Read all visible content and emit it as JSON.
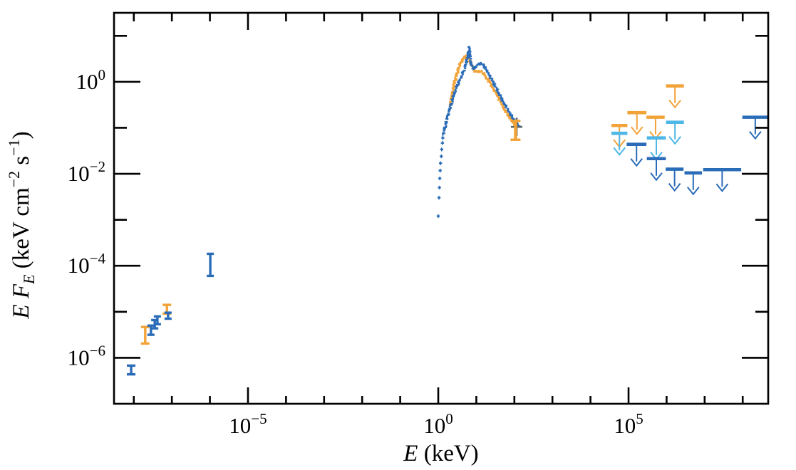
{
  "figure": {
    "background": "#ffffff",
    "axis_color": "#000000"
  },
  "chart_data": {
    "type": "scatter",
    "title": "",
    "x_scale": "log",
    "y_scale": "log",
    "xlabel_parts": [
      {
        "t": "E",
        "style": "italic"
      },
      {
        "t": " (keV)"
      }
    ],
    "ylabel_parts": [
      {
        "t": "E F",
        "style": "italic"
      },
      {
        "t": "E",
        "style": "italic",
        "script": "sub"
      },
      {
        "t": " (keV cm"
      },
      {
        "t": "−2",
        "script": "sup"
      },
      {
        "t": " s"
      },
      {
        "t": "−1",
        "script": "sup"
      },
      {
        "t": ")"
      }
    ],
    "xlim_log": [
      -8.52,
      8.67
    ],
    "ylim_log": [
      -7.0,
      1.5
    ],
    "x_ticks": {
      "major_exponents": [
        -5,
        0,
        5
      ],
      "minor_exponents": [
        -8,
        -7,
        -6,
        -4,
        -3,
        -2,
        -1,
        1,
        2,
        3,
        4,
        6,
        7,
        8
      ]
    },
    "y_ticks": {
      "major_exponents": [
        0,
        -2,
        -4,
        -6
      ],
      "minor_exponents": [
        1,
        -1,
        -3,
        -5
      ]
    },
    "tick_label_base": "10",
    "colors": {
      "blue": "#2a6cb8",
      "orange": "#f1a338",
      "lightblue": "#4db7e8",
      "gray": "#5b656d",
      "axis": "#000000"
    },
    "series": {
      "radio_errorbars_blue": [
        {
          "x": -8.07,
          "ylo": -6.36,
          "yhi": -6.17,
          "capw": 6
        },
        {
          "x": -7.55,
          "ylo": -5.5,
          "yhi": -5.3,
          "capw": 5
        },
        {
          "x": -7.45,
          "ylo": -5.36,
          "yhi": -5.18,
          "capw": 5
        },
        {
          "x": -7.38,
          "ylo": -5.27,
          "yhi": -5.1,
          "capw": 5
        },
        {
          "x": -7.1,
          "ylo": -5.15,
          "yhi": -5.02,
          "capw": 5
        },
        {
          "x": -5.99,
          "ylo": -4.22,
          "yhi": -3.74,
          "capw": 5
        }
      ],
      "radio_errorbars_orange": [
        {
          "x": -7.7,
          "ylo": -5.69,
          "yhi": -5.33,
          "capw": 6
        },
        {
          "x": -7.13,
          "ylo": -5.04,
          "yhi": -4.85,
          "capw": 6
        }
      ],
      "xray_blue_sparse_points": [
        [
          0.0,
          -2.92
        ],
        [
          0.02,
          -2.52
        ],
        [
          0.03,
          -2.3
        ],
        [
          0.04,
          -2.1
        ],
        [
          0.05,
          -1.93
        ],
        [
          0.06,
          -1.77
        ],
        [
          0.08,
          -1.62
        ],
        [
          0.09,
          -1.47
        ],
        [
          0.11,
          -1.33
        ],
        [
          0.12,
          -1.22
        ]
      ],
      "xray_blue_anchors": [
        [
          0.13,
          -1.13
        ],
        [
          0.17,
          -1.01
        ],
        [
          0.21,
          -0.88
        ],
        [
          0.24,
          -0.76
        ],
        [
          0.28,
          -0.65
        ],
        [
          0.32,
          -0.54
        ],
        [
          0.36,
          -0.43
        ],
        [
          0.39,
          -0.33
        ],
        [
          0.43,
          -0.23
        ],
        [
          0.47,
          -0.14
        ],
        [
          0.52,
          -0.03
        ],
        [
          0.58,
          0.08
        ],
        [
          0.64,
          0.19
        ],
        [
          0.69,
          0.29
        ],
        [
          0.73,
          0.39
        ],
        [
          0.77,
          0.51
        ],
        [
          0.79,
          0.64
        ],
        [
          0.81,
          0.76
        ],
        [
          0.82,
          0.64
        ],
        [
          0.84,
          0.54
        ],
        [
          0.86,
          0.42
        ],
        [
          0.88,
          0.34
        ],
        [
          0.92,
          0.28
        ],
        [
          0.96,
          0.29
        ],
        [
          0.99,
          0.33
        ],
        [
          1.05,
          0.37
        ],
        [
          1.1,
          0.4
        ],
        [
          1.16,
          0.39
        ],
        [
          1.22,
          0.33
        ],
        [
          1.27,
          0.25
        ],
        [
          1.33,
          0.17
        ],
        [
          1.4,
          0.06
        ],
        [
          1.48,
          -0.06
        ],
        [
          1.55,
          -0.19
        ],
        [
          1.63,
          -0.31
        ],
        [
          1.7,
          -0.43
        ],
        [
          1.78,
          -0.54
        ],
        [
          1.85,
          -0.65
        ],
        [
          1.93,
          -0.74
        ],
        [
          2.0,
          -0.84
        ],
        [
          2.08,
          -0.92
        ],
        [
          2.13,
          -0.98
        ]
      ],
      "xray_orange_anchors": [
        [
          0.32,
          -0.51
        ],
        [
          0.34,
          -0.4
        ],
        [
          0.36,
          -0.31
        ],
        [
          0.39,
          -0.16
        ],
        [
          0.43,
          -0.02
        ],
        [
          0.47,
          0.11
        ],
        [
          0.51,
          0.22
        ],
        [
          0.54,
          0.31
        ],
        [
          0.58,
          0.39
        ],
        [
          0.62,
          0.45
        ],
        [
          0.66,
          0.5
        ],
        [
          0.69,
          0.53
        ],
        [
          0.73,
          0.55
        ],
        [
          0.77,
          0.56
        ],
        [
          0.79,
          0.53
        ],
        [
          0.82,
          0.47
        ],
        [
          0.86,
          0.39
        ],
        [
          0.9,
          0.31
        ],
        [
          0.94,
          0.26
        ],
        [
          0.97,
          0.23
        ],
        [
          1.03,
          0.22
        ],
        [
          1.09,
          0.23
        ],
        [
          1.14,
          0.22
        ],
        [
          1.2,
          0.17
        ],
        [
          1.25,
          0.11
        ],
        [
          1.31,
          0.05
        ],
        [
          1.37,
          -0.03
        ],
        [
          1.44,
          -0.14
        ],
        [
          1.52,
          -0.25
        ],
        [
          1.59,
          -0.37
        ],
        [
          1.67,
          -0.48
        ],
        [
          1.74,
          -0.59
        ],
        [
          1.82,
          -0.7
        ],
        [
          1.89,
          -0.79
        ],
        [
          1.97,
          -0.88
        ],
        [
          2.04,
          -0.96
        ],
        [
          2.07,
          -1.0
        ]
      ],
      "terminal_gray_cross": {
        "x": 2.06,
        "y": -0.98,
        "xerr": 0.15,
        "yerr": 0.2
      },
      "terminal_orange_bar": {
        "x": 2.03,
        "ylo": -1.26,
        "yhi": -0.85,
        "capw": 7
      },
      "upper_limits": [
        {
          "color": "orange",
          "x": 5.22,
          "xhw": 0.25,
          "y": -0.67
        },
        {
          "color": "orange",
          "x": 5.71,
          "xhw": 0.24,
          "y": -0.77
        },
        {
          "color": "orange",
          "x": 6.22,
          "xhw": 0.235,
          "y": -0.09
        },
        {
          "color": "orange",
          "x": 4.76,
          "xhw": 0.21,
          "y": -0.95
        },
        {
          "color": "lightblue",
          "x": 4.76,
          "xhw": 0.21,
          "y": -1.12
        },
        {
          "color": "lightblue",
          "x": 5.73,
          "xhw": 0.25,
          "y": -1.22
        },
        {
          "color": "lightblue",
          "x": 6.22,
          "xhw": 0.235,
          "y": -0.88
        },
        {
          "color": "blue",
          "x": 5.21,
          "xhw": 0.26,
          "y": -1.36
        },
        {
          "color": "blue",
          "x": 5.73,
          "xhw": 0.25,
          "y": -1.67
        },
        {
          "color": "blue",
          "x": 6.21,
          "xhw": 0.235,
          "y": -1.9
        },
        {
          "color": "blue",
          "x": 6.7,
          "xhw": 0.23,
          "y": -1.98
        },
        {
          "color": "blue",
          "x": 7.46,
          "xhw": 0.5,
          "y": -1.91
        },
        {
          "color": "blue",
          "x": 8.33,
          "xhw": 0.34,
          "y": -0.77
        }
      ]
    },
    "legend": null,
    "grid": false
  }
}
